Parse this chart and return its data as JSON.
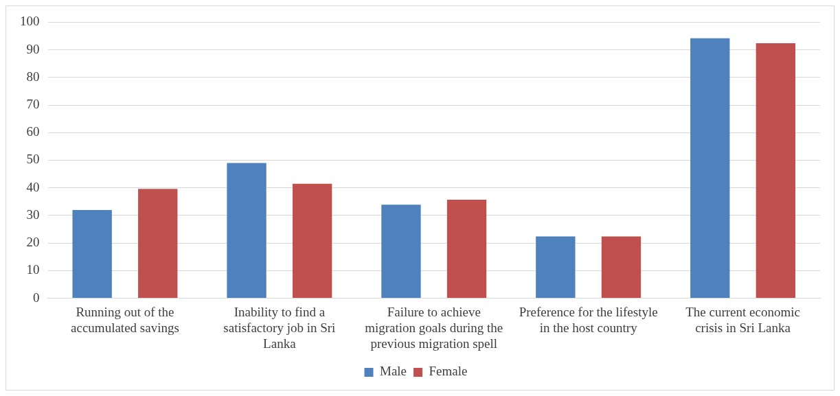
{
  "chart_data": {
    "type": "bar",
    "categories": [
      "Running out of the accumulated savings",
      "Inability to find a satisfactory job in Sri Lanka",
      "Failure to achieve migration goals during the previous migration spell",
      "Preference for the lifestyle in the host country",
      "The current economic crisis in Sri Lanka"
    ],
    "series": [
      {
        "name": "Male",
        "color": "#4f81bd",
        "values": [
          32.0,
          49.0,
          33.9,
          22.4,
          94.2
        ]
      },
      {
        "name": "Female",
        "color": "#c0504d",
        "values": [
          39.6,
          41.5,
          35.7,
          22.4,
          92.4
        ]
      }
    ],
    "ylim": [
      0,
      100
    ],
    "yticks": [
      0,
      10,
      20,
      30,
      40,
      50,
      60,
      70,
      80,
      90,
      100
    ],
    "grid": "y",
    "legend": "bottom"
  }
}
